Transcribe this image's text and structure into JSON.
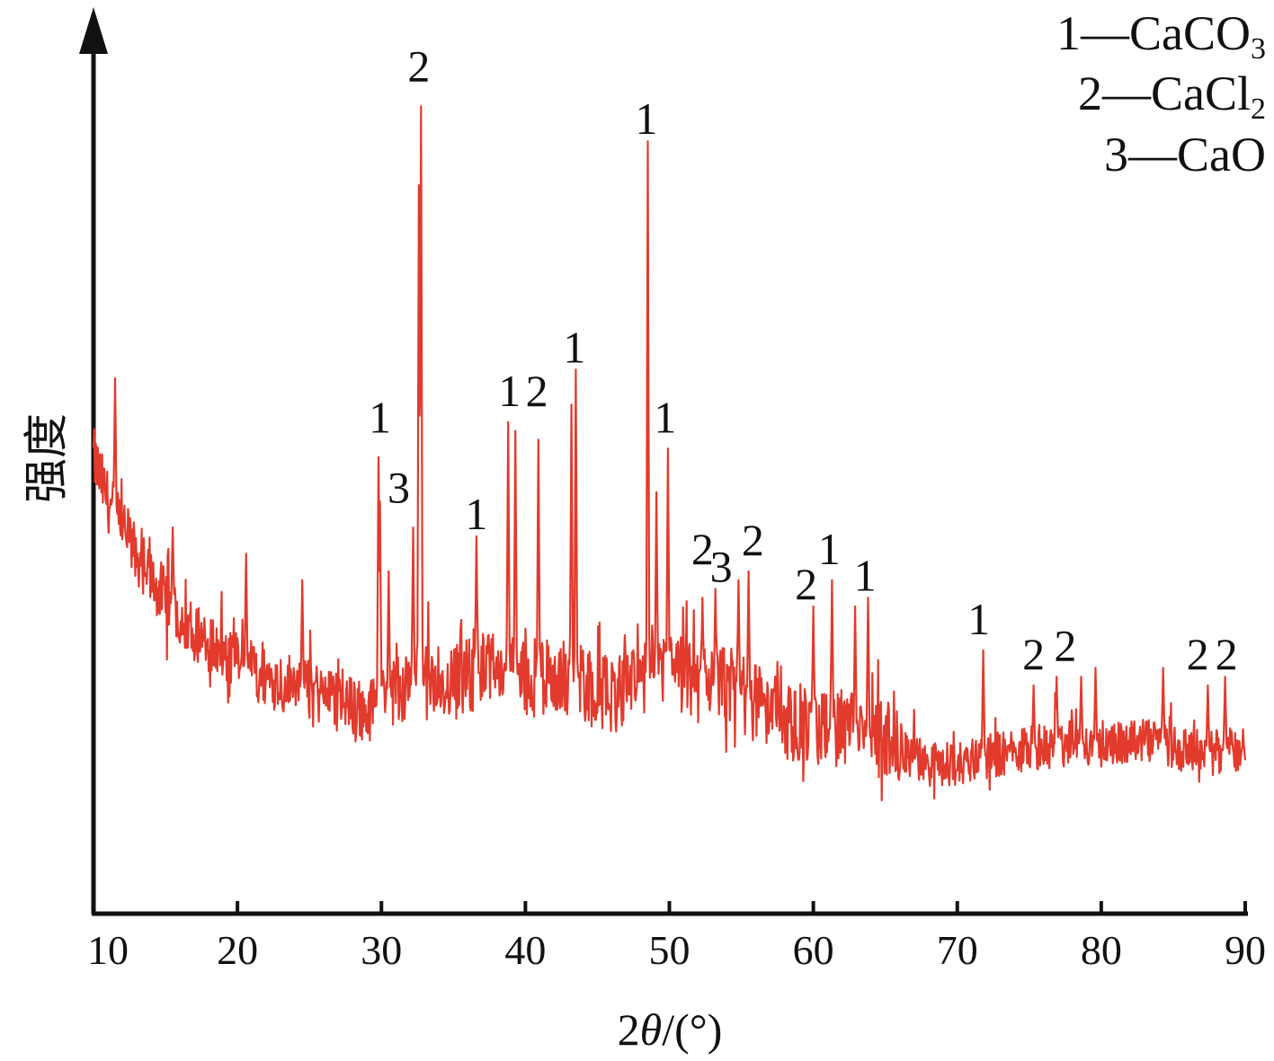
{
  "chart_data": {
    "type": "line",
    "xlabel_prefix": "2",
    "xlabel_theta": "θ",
    "xlabel_suffix": "/(°)",
    "ylabel": "强度",
    "xlim": [
      10,
      90
    ],
    "ylim": [
      0,
      100
    ],
    "x_ticks": [
      "10",
      "20",
      "30",
      "40",
      "50",
      "60",
      "70",
      "80",
      "90"
    ],
    "series_color": "#e23a2c",
    "baseline": [
      [
        10.0,
        52
      ],
      [
        11.0,
        47
      ],
      [
        12.0,
        44
      ],
      [
        13.0,
        41
      ],
      [
        14.0,
        38
      ],
      [
        15.0,
        36
      ],
      [
        16.0,
        34
      ],
      [
        17.0,
        32.5
      ],
      [
        18.0,
        31
      ],
      [
        19.0,
        29.5
      ],
      [
        20.0,
        28.5
      ],
      [
        22.0,
        27
      ],
      [
        24.0,
        26
      ],
      [
        26.0,
        25
      ],
      [
        28.0,
        23.5
      ],
      [
        29.0,
        23
      ],
      [
        30.0,
        24
      ],
      [
        32.0,
        26
      ],
      [
        34.0,
        26
      ],
      [
        36.0,
        27
      ],
      [
        38.0,
        28
      ],
      [
        40.0,
        27
      ],
      [
        42.0,
        27
      ],
      [
        44.0,
        26
      ],
      [
        46.0,
        25
      ],
      [
        48.0,
        26
      ],
      [
        50.0,
        28
      ],
      [
        52.0,
        26
      ],
      [
        54.0,
        26
      ],
      [
        56.0,
        24
      ],
      [
        58.0,
        22
      ],
      [
        60.0,
        21
      ],
      [
        62.0,
        21
      ],
      [
        64.0,
        20
      ],
      [
        66.0,
        18.5
      ],
      [
        68.0,
        17
      ],
      [
        70.0,
        17
      ],
      [
        72.0,
        18
      ],
      [
        74.0,
        18.5
      ],
      [
        76.0,
        19
      ],
      [
        78.0,
        19.5
      ],
      [
        80.0,
        19
      ],
      [
        82.0,
        19.5
      ],
      [
        84.0,
        19.5
      ],
      [
        86.0,
        18.5
      ],
      [
        88.0,
        18.5
      ],
      [
        90.0,
        19
      ]
    ],
    "peaks": [
      {
        "x": 11.5,
        "y": 61
      },
      {
        "x": 15.5,
        "y": 44
      },
      {
        "x": 20.6,
        "y": 41
      },
      {
        "x": 24.5,
        "y": 38
      },
      {
        "x": 29.8,
        "y": 52
      },
      {
        "x": 29.9,
        "y": 47
      },
      {
        "x": 30.5,
        "y": 39
      },
      {
        "x": 32.2,
        "y": 44
      },
      {
        "x": 32.6,
        "y": 83
      },
      {
        "x": 32.75,
        "y": 92
      },
      {
        "x": 36.6,
        "y": 43
      },
      {
        "x": 38.8,
        "y": 56
      },
      {
        "x": 39.3,
        "y": 55
      },
      {
        "x": 40.9,
        "y": 54
      },
      {
        "x": 43.2,
        "y": 58
      },
      {
        "x": 43.5,
        "y": 62
      },
      {
        "x": 48.5,
        "y": 88
      },
      {
        "x": 49.1,
        "y": 48
      },
      {
        "x": 49.9,
        "y": 53
      },
      {
        "x": 52.3,
        "y": 36
      },
      {
        "x": 53.2,
        "y": 37
      },
      {
        "x": 54.8,
        "y": 38
      },
      {
        "x": 55.5,
        "y": 39
      },
      {
        "x": 60.0,
        "y": 35
      },
      {
        "x": 61.3,
        "y": 38
      },
      {
        "x": 62.9,
        "y": 35
      },
      {
        "x": 63.8,
        "y": 36
      },
      {
        "x": 71.8,
        "y": 30
      },
      {
        "x": 75.3,
        "y": 26
      },
      {
        "x": 76.9,
        "y": 27
      },
      {
        "x": 78.6,
        "y": 27
      },
      {
        "x": 79.6,
        "y": 28
      },
      {
        "x": 84.3,
        "y": 28
      },
      {
        "x": 87.4,
        "y": 26
      },
      {
        "x": 88.6,
        "y": 27
      }
    ],
    "peak_labels": [
      {
        "x": 29.9,
        "y": 54,
        "text": "1"
      },
      {
        "x": 31.2,
        "y": 46,
        "text": "3"
      },
      {
        "x": 32.6,
        "y": 94,
        "text": "2"
      },
      {
        "x": 36.6,
        "y": 43,
        "text": "1"
      },
      {
        "x": 38.9,
        "y": 57,
        "text": "1"
      },
      {
        "x": 40.8,
        "y": 57,
        "text": "2"
      },
      {
        "x": 43.4,
        "y": 62,
        "text": "1"
      },
      {
        "x": 48.4,
        "y": 88,
        "text": "1"
      },
      {
        "x": 49.7,
        "y": 54,
        "text": "1"
      },
      {
        "x": 52.3,
        "y": 39,
        "text": "2"
      },
      {
        "x": 53.6,
        "y": 37,
        "text": "3"
      },
      {
        "x": 55.8,
        "y": 40,
        "text": "2"
      },
      {
        "x": 59.5,
        "y": 35,
        "text": "2"
      },
      {
        "x": 61.1,
        "y": 39,
        "text": "1"
      },
      {
        "x": 63.6,
        "y": 36,
        "text": "1"
      },
      {
        "x": 71.5,
        "y": 31,
        "text": "1"
      },
      {
        "x": 75.3,
        "y": 27,
        "text": "2"
      },
      {
        "x": 77.5,
        "y": 28,
        "text": "2"
      },
      {
        "x": 86.7,
        "y": 27,
        "text": "2"
      },
      {
        "x": 88.7,
        "y": 27,
        "text": "2"
      }
    ],
    "legend": [
      {
        "number": "1",
        "dash": "—",
        "formula": "CaCO",
        "subscript": "3"
      },
      {
        "number": "2",
        "dash": "—",
        "formula": "CaCl",
        "subscript": "2"
      },
      {
        "number": "3",
        "dash": "—",
        "formula": "CaO",
        "subscript": ""
      }
    ],
    "legend_position": "top-right"
  }
}
